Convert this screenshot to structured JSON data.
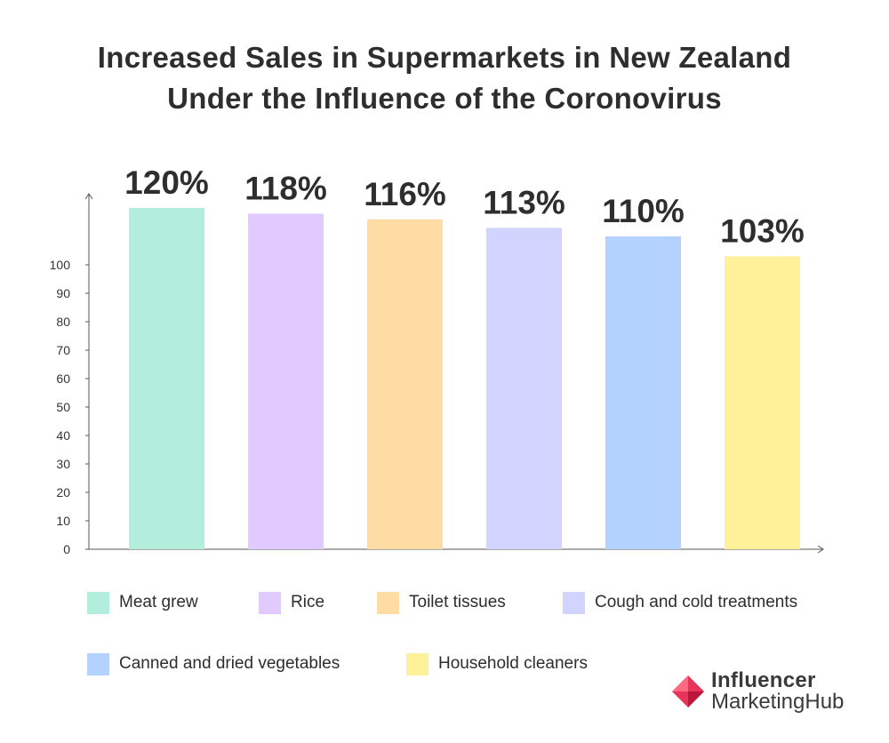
{
  "title_line1": "Increased Sales in Supermarkets in New Zealand",
  "title_line2": "Under the Influence of the Coronovirus",
  "chart_data": {
    "type": "bar",
    "title": "Increased Sales in Supermarkets in New Zealand Under the Influence of the Coronovirus",
    "categories": [
      "Meat grew",
      "Rice",
      "Toilet tissues",
      "Cough and cold treatments",
      "Canned and dried vegetables",
      "Household cleaners"
    ],
    "values": [
      120,
      118,
      116,
      113,
      110,
      103
    ],
    "data_labels": [
      "120%",
      "118%",
      "116%",
      "113%",
      "110%",
      "103%"
    ],
    "colors": [
      "#b3eedc",
      "#e0caff",
      "#ffdca4",
      "#d0d4ff",
      "#b3d2fe",
      "#fff09a"
    ],
    "ylim": [
      0,
      100
    ],
    "yticks": [
      0,
      10,
      20,
      30,
      40,
      50,
      60,
      70,
      80,
      90,
      100
    ],
    "xlabel": "",
    "ylabel": "",
    "grid": false,
    "legend_position": "bottom"
  },
  "legend": [
    {
      "label": "Meat grew",
      "color": "#b3eedc"
    },
    {
      "label": "Rice",
      "color": "#e0caff"
    },
    {
      "label": "Toilet tissues",
      "color": "#ffdca4"
    },
    {
      "label": "Cough and cold treatments",
      "color": "#d0d4ff"
    },
    {
      "label": "Canned and dried vegetables",
      "color": "#b3d2fe"
    },
    {
      "label": "Household cleaners",
      "color": "#fff09a"
    }
  ],
  "logo": {
    "line1": "Influencer",
    "line2": "MarketingHub",
    "accent": "#e8345a"
  }
}
